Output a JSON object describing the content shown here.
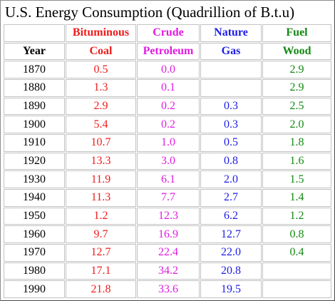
{
  "chart_data": {
    "type": "table",
    "title": "U.S. Energy Consumption (Quadrillion of B.t.u)",
    "columns": [
      {
        "key": "year",
        "header_top": "",
        "header_bottom": "Year",
        "color": "#000000"
      },
      {
        "key": "coal",
        "header_top": "Bituminous",
        "header_bottom": "Coal",
        "color": "#ef1c1c"
      },
      {
        "key": "crude",
        "header_top": "Crude",
        "header_bottom": "Petroleum",
        "color": "#e11ce1"
      },
      {
        "key": "gas",
        "header_top": "Nature",
        "header_bottom": "Gas",
        "color": "#1c1ce8"
      },
      {
        "key": "wood",
        "header_top": "Fuel",
        "header_bottom": "Wood",
        "color": "#138a13"
      }
    ],
    "rows": [
      {
        "year": "1870",
        "coal": "0.5",
        "crude": "0.0",
        "gas": "",
        "wood": "2.9"
      },
      {
        "year": "1880",
        "coal": "1.3",
        "crude": "0.1",
        "gas": "",
        "wood": "2.9"
      },
      {
        "year": "1890",
        "coal": "2.9",
        "crude": "0.2",
        "gas": "0.3",
        "wood": "2.5"
      },
      {
        "year": "1900",
        "coal": "5.4",
        "crude": "0.2",
        "gas": "0.3",
        "wood": "2.0"
      },
      {
        "year": "1910",
        "coal": "10.7",
        "crude": "1.0",
        "gas": "0.5",
        "wood": "1.8"
      },
      {
        "year": "1920",
        "coal": "13.3",
        "crude": "3.0",
        "gas": "0.8",
        "wood": "1.6"
      },
      {
        "year": "1930",
        "coal": "11.9",
        "crude": "6.1",
        "gas": "2.0",
        "wood": "1.5"
      },
      {
        "year": "1940",
        "coal": "11.3",
        "crude": "7.7",
        "gas": "2.7",
        "wood": "1.4"
      },
      {
        "year": "1950",
        "coal": "1.2",
        "crude": "12.3",
        "gas": "6.2",
        "wood": "1.2"
      },
      {
        "year": "1960",
        "coal": "9.7",
        "crude": "16.9",
        "gas": "12.7",
        "wood": "0.8"
      },
      {
        "year": "1970",
        "coal": "12.7",
        "crude": "22.4",
        "gas": "22.0",
        "wood": "0.4"
      },
      {
        "year": "1980",
        "coal": "17.1",
        "crude": "34.2",
        "gas": "20.8",
        "wood": ""
      },
      {
        "year": "1990",
        "coal": "21.8",
        "crude": "33.6",
        "gas": "19.5",
        "wood": ""
      }
    ]
  }
}
